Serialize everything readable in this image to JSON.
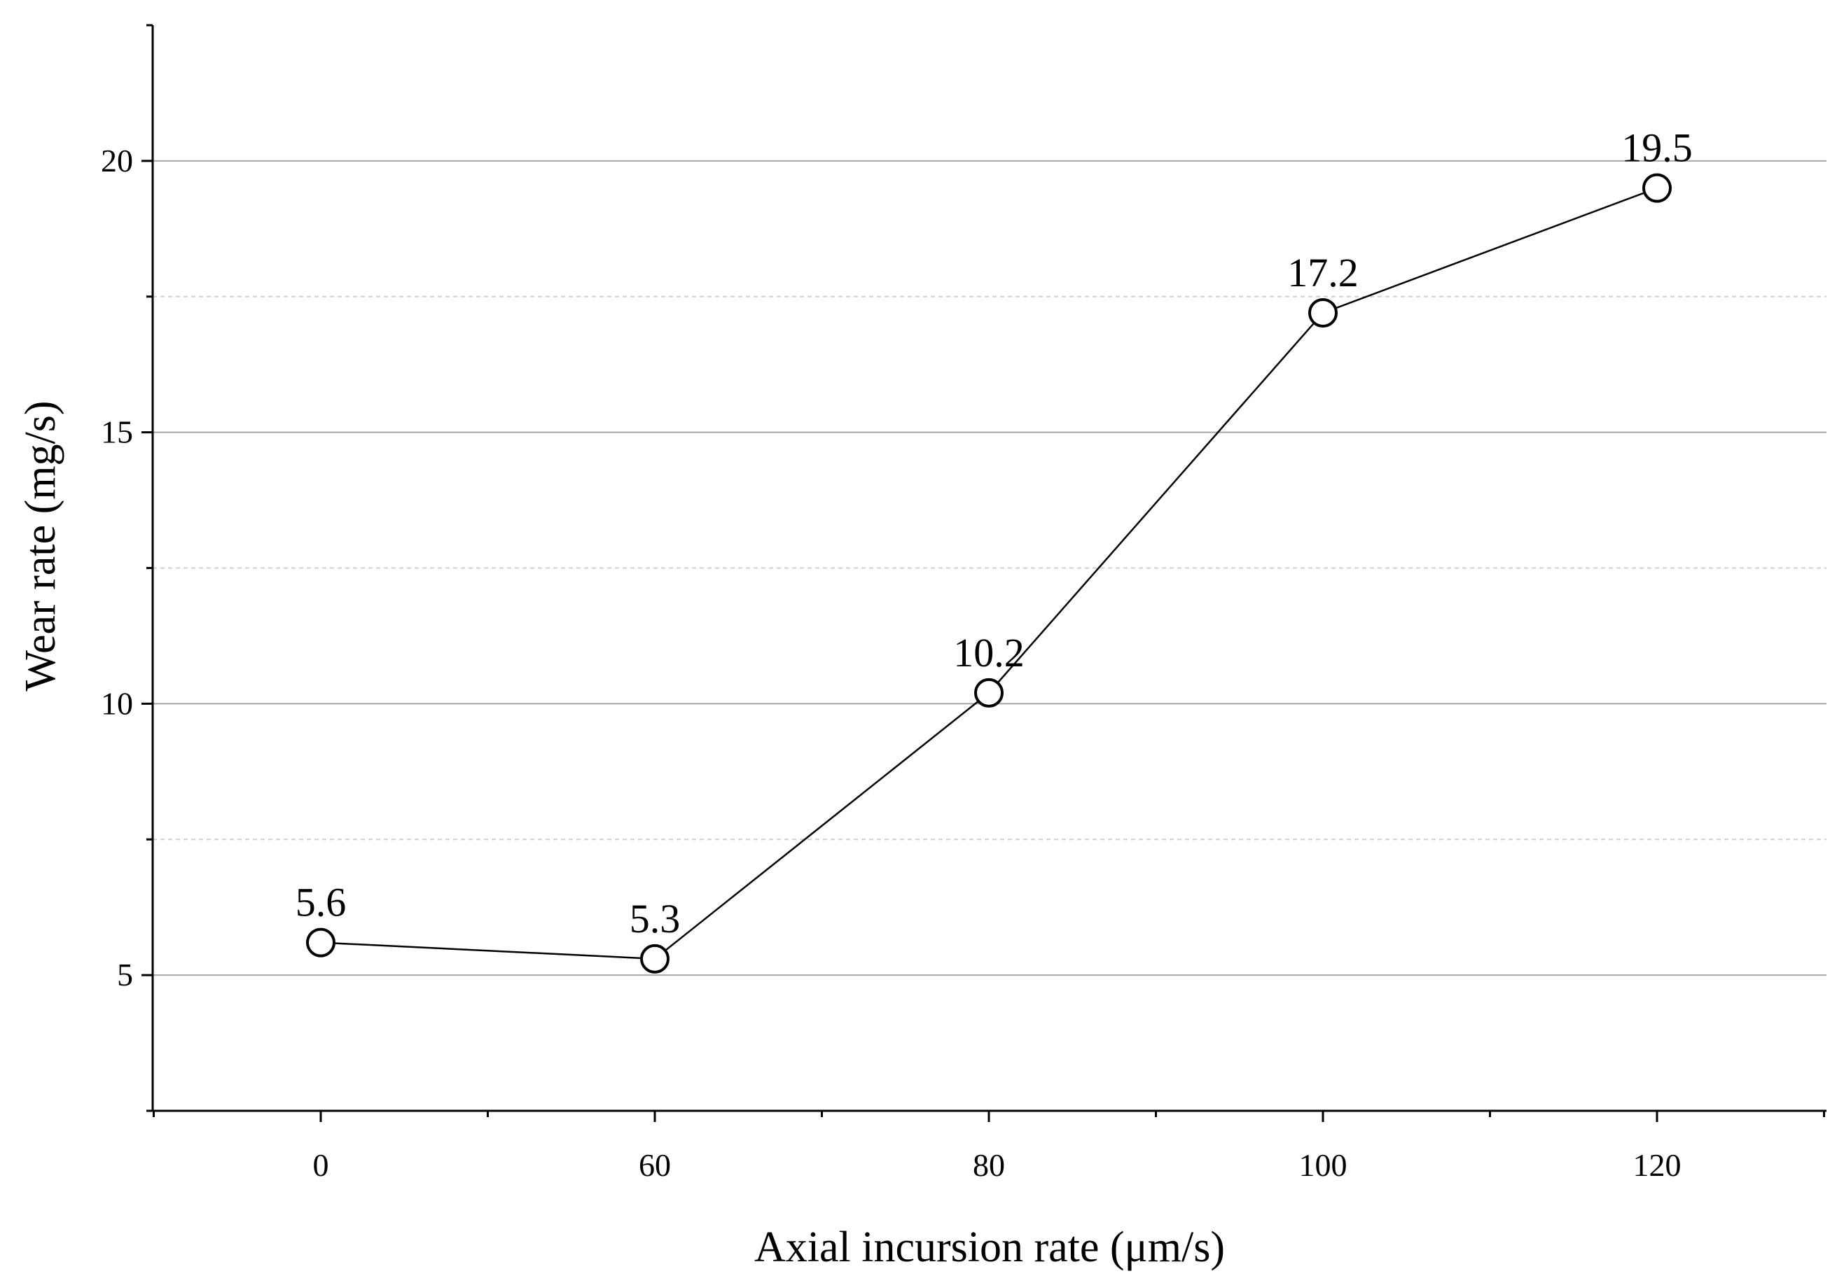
{
  "chart_data": {
    "type": "line",
    "title": "",
    "xlabel": "Axial incursion rate (μm/s)",
    "ylabel": "Wear rate (mg/s)",
    "categories": [
      "0",
      "60",
      "80",
      "100",
      "120"
    ],
    "series": [
      {
        "name": "Wear rate",
        "values": [
          5.6,
          5.3,
          10.2,
          17.2,
          19.5
        ],
        "labels": [
          "5.6",
          "5.3",
          "10.2",
          "17.2",
          "19.5"
        ]
      }
    ],
    "yticks": [
      "5",
      "10",
      "15",
      "20"
    ],
    "ylim": [
      2.5,
      22.5
    ],
    "grid": true,
    "marker": "open-circle",
    "line_color": "#000000",
    "grid_major_color": "#a8a8a8",
    "grid_minor_color": "#d0d0d0"
  }
}
